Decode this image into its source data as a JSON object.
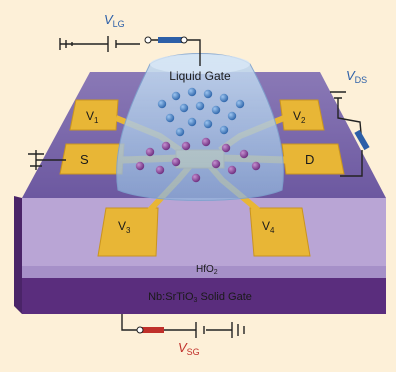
{
  "colors": {
    "background": "#fdf0d8",
    "substrate_top": "#7b6aa8",
    "substrate_side": "#5b2f7e",
    "hfo2_band": "#b8a6d6",
    "electrode": "#e8b636",
    "liquid": "#a9c7e8",
    "ion_blue": "#3a78c2",
    "ion_purple": "#7a3c8c",
    "vlg_color": "#2c5fa8",
    "vds_color": "#2c5fa8",
    "vsg_color": "#c0302a"
  },
  "labels": {
    "liquid_gate": "Liquid Gate",
    "v1": "V",
    "v1_sub": "1",
    "v2": "V",
    "v2_sub": "2",
    "v3": "V",
    "v3_sub": "3",
    "v4": "V",
    "v4_sub": "4",
    "source": "S",
    "drain": "D",
    "hfo2": "HfO",
    "hfo2_sub": "2",
    "solid_gate": "Nb:SrTiO",
    "solid_gate_sub": "3",
    "solid_gate_rest": " Solid Gate"
  },
  "voltages": {
    "vlg": "V",
    "vlg_sub": "LG",
    "vds": "V",
    "vds_sub": "DS",
    "vsg": "V",
    "vsg_sub": "SG"
  }
}
